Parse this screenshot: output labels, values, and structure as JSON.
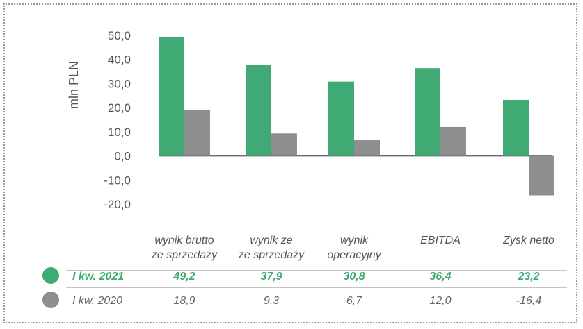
{
  "chart_data": {
    "type": "bar",
    "ylabel": "mln PLN",
    "ylim": [
      -20,
      50
    ],
    "yticks": [
      "50,0",
      "40,0",
      "30,0",
      "20,0",
      "10,0",
      "0,0",
      "-10,0",
      "-20,0"
    ],
    "ytick_values": [
      50,
      40,
      30,
      20,
      10,
      0,
      -10,
      -20
    ],
    "categories": [
      [
        "wynik brutto",
        "ze sprzedaży"
      ],
      [
        "wynik ze",
        "ze sprzedaży"
      ],
      [
        "wynik",
        "operacyjny"
      ],
      [
        "EBITDA"
      ],
      [
        "Zysk netto"
      ]
    ],
    "series": [
      {
        "name": "I kw. 2021",
        "color": "#3faa73",
        "values": [
          49.2,
          37.9,
          30.8,
          36.4,
          23.2
        ],
        "labels": [
          "49,2",
          "37,9",
          "30,8",
          "36,4",
          "23,2"
        ]
      },
      {
        "name": "I kw. 2020",
        "color": "#8e8e8e",
        "values": [
          18.9,
          9.3,
          6.7,
          12.0,
          -16.4
        ],
        "labels": [
          "18,9",
          "9,3",
          "6,7",
          "12,0",
          "-16,4"
        ]
      }
    ]
  }
}
